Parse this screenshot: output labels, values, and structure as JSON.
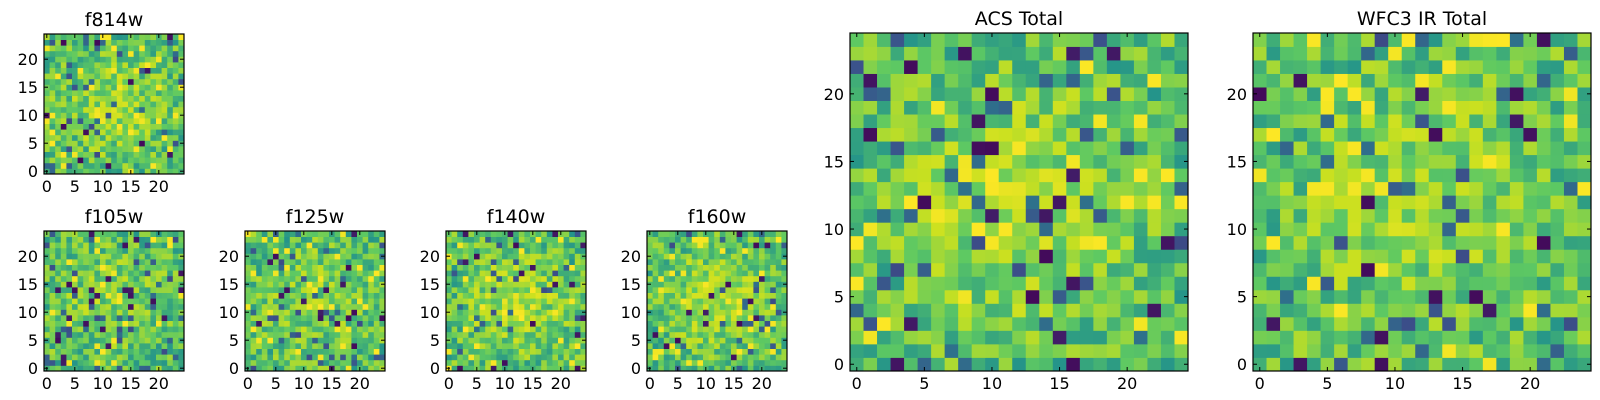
{
  "figure": {
    "title": "",
    "colormap": [
      "#440154",
      "#3b528b",
      "#21918c",
      "#5ec962",
      "#c8e020",
      "#fde725"
    ]
  },
  "chart_data": [
    {
      "type": "heatmap",
      "name": "f814w",
      "title": "f814w",
      "seed": 11,
      "grid_size": 25,
      "xlim": [
        0,
        24
      ],
      "ylim": [
        0,
        24
      ],
      "x_ticks": [
        0,
        5,
        10,
        15,
        20
      ],
      "y_ticks": [
        0,
        5,
        10,
        15,
        20
      ],
      "x_tick_labels": [
        "0",
        "5",
        "10",
        "15",
        "20"
      ],
      "y_tick_labels": [
        "0",
        "5",
        "10",
        "15",
        "20"
      ],
      "center_boost": 0.15
    },
    {
      "type": "heatmap",
      "name": "f105w",
      "title": "f105w",
      "seed": 23,
      "grid_size": 25,
      "xlim": [
        0,
        24
      ],
      "ylim": [
        0,
        24
      ],
      "x_ticks": [
        0,
        5,
        10,
        15,
        20
      ],
      "y_ticks": [
        0,
        5,
        10,
        15,
        20
      ],
      "x_tick_labels": [
        "0",
        "5",
        "10",
        "15",
        "20"
      ],
      "y_tick_labels": [
        "0",
        "5",
        "10",
        "15",
        "20"
      ],
      "center_boost": 0.1
    },
    {
      "type": "heatmap",
      "name": "f125w",
      "title": "f125w",
      "seed": 37,
      "grid_size": 25,
      "xlim": [
        0,
        24
      ],
      "ylim": [
        0,
        24
      ],
      "x_ticks": [
        0,
        5,
        10,
        15,
        20
      ],
      "y_ticks": [
        0,
        5,
        10,
        15,
        20
      ],
      "x_tick_labels": [
        "0",
        "5",
        "10",
        "15",
        "20"
      ],
      "y_tick_labels": [
        "0",
        "5",
        "10",
        "15",
        "20"
      ],
      "center_boost": 0.1
    },
    {
      "type": "heatmap",
      "name": "f140w",
      "title": "f140w",
      "seed": 41,
      "grid_size": 25,
      "xlim": [
        0,
        24
      ],
      "ylim": [
        0,
        24
      ],
      "x_ticks": [
        0,
        5,
        10,
        15,
        20
      ],
      "y_ticks": [
        0,
        5,
        10,
        15,
        20
      ],
      "x_tick_labels": [
        "0",
        "5",
        "10",
        "15",
        "20"
      ],
      "y_tick_labels": [
        "0",
        "5",
        "10",
        "15",
        "20"
      ],
      "center_boost": 0.2
    },
    {
      "type": "heatmap",
      "name": "f160w",
      "title": "f160w",
      "seed": 53,
      "grid_size": 25,
      "xlim": [
        0,
        24
      ],
      "ylim": [
        0,
        24
      ],
      "x_ticks": [
        0,
        5,
        10,
        15,
        20
      ],
      "y_ticks": [
        0,
        5,
        10,
        15,
        20
      ],
      "x_tick_labels": [
        "0",
        "5",
        "10",
        "15",
        "20"
      ],
      "y_tick_labels": [
        "0",
        "5",
        "10",
        "15",
        "20"
      ],
      "center_boost": 0.2
    },
    {
      "type": "heatmap",
      "name": "acs-total",
      "title": "ACS Total",
      "seed": 67,
      "grid_size": 25,
      "xlim": [
        0,
        24
      ],
      "ylim": [
        0,
        24
      ],
      "x_ticks": [
        0,
        5,
        10,
        15,
        20
      ],
      "y_ticks": [
        0,
        5,
        10,
        15,
        20
      ],
      "x_tick_labels": [
        "0",
        "5",
        "10",
        "15",
        "20"
      ],
      "y_tick_labels": [
        "0",
        "5",
        "10",
        "15",
        "20"
      ],
      "center_boost": 0.2
    },
    {
      "type": "heatmap",
      "name": "wfc3-ir-total",
      "title": "WFC3 IR Total",
      "seed": 79,
      "grid_size": 25,
      "xlim": [
        0,
        24
      ],
      "ylim": [
        0,
        24
      ],
      "x_ticks": [
        0,
        5,
        10,
        15,
        20
      ],
      "y_ticks": [
        0,
        5,
        10,
        15,
        20
      ],
      "x_tick_labels": [
        "0",
        "5",
        "10",
        "15",
        "20"
      ],
      "y_tick_labels": [
        "0",
        "5",
        "10",
        "15",
        "20"
      ],
      "center_boost": 0.15
    }
  ]
}
